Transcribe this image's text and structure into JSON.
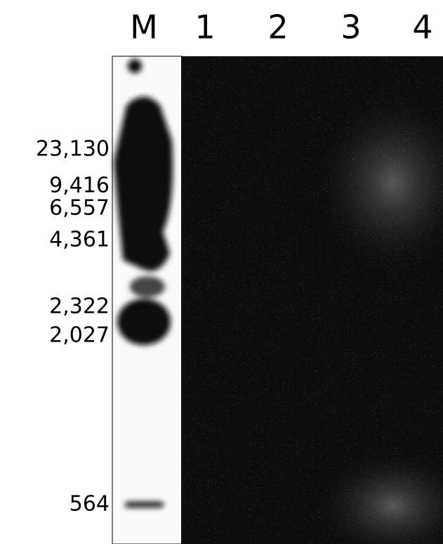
{
  "lanes": [
    "M",
    "1",
    "2",
    "3",
    "4"
  ],
  "markers": [
    "23,130",
    "9,416",
    "6,557",
    "4,361",
    "2,322",
    "2,027",
    "564"
  ]
}
